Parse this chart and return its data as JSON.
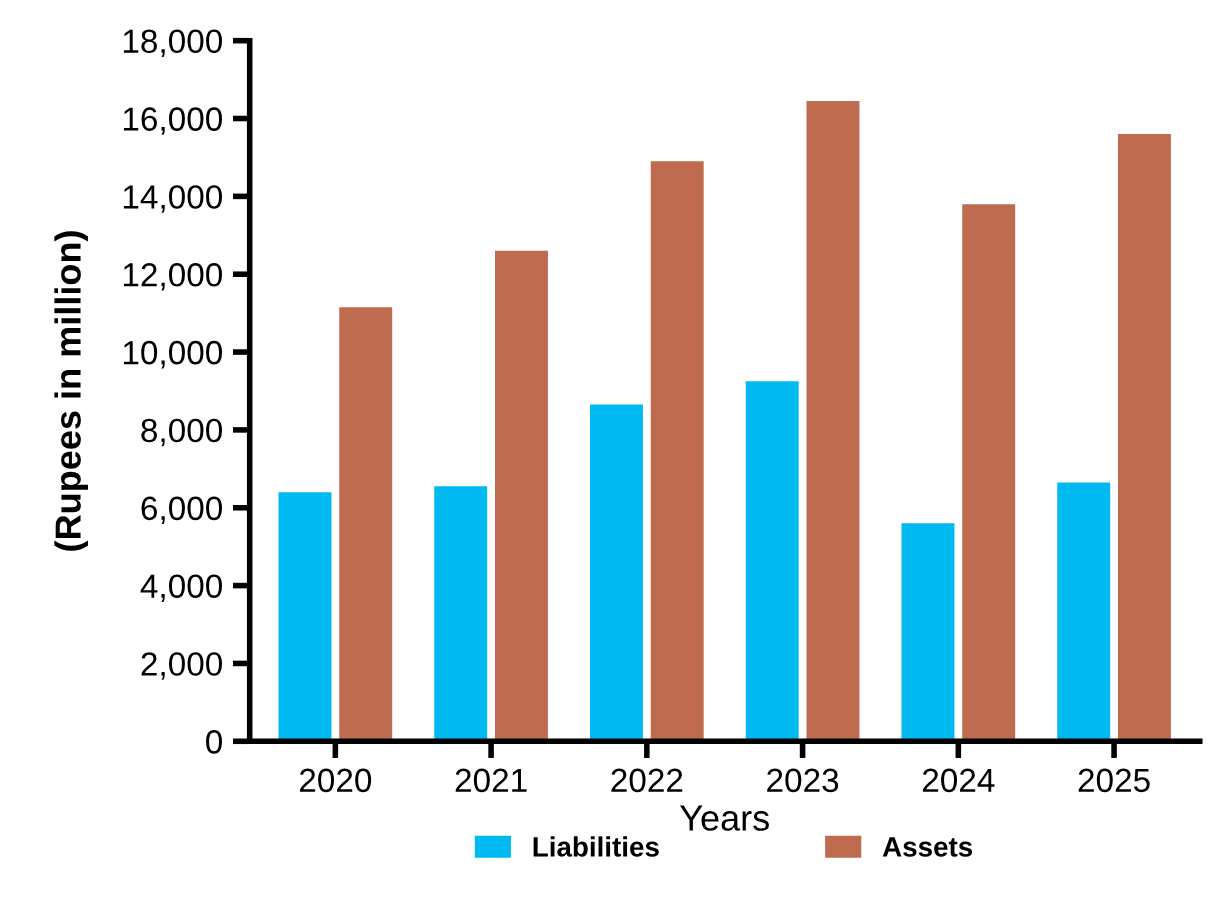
{
  "chart_data": {
    "type": "bar",
    "xlabel": "Years",
    "ylabel": "(Rupees in million)",
    "categories": [
      "2020",
      "2021",
      "2022",
      "2023",
      "2024",
      "2025"
    ],
    "series": [
      {
        "name": "Liabilities",
        "color": "#00b9f1",
        "values": [
          6400,
          6550,
          8650,
          9250,
          5600,
          6650
        ]
      },
      {
        "name": "Assets",
        "color": "#be6b4f",
        "values": [
          11150,
          12600,
          14900,
          16450,
          13800,
          15600
        ]
      }
    ],
    "ylim": [
      0,
      18000
    ],
    "yticks": [
      {
        "value": 0,
        "label": "0"
      },
      {
        "value": 2000,
        "label": "2,000"
      },
      {
        "value": 4000,
        "label": "4,000"
      },
      {
        "value": 6000,
        "label": "6,000"
      },
      {
        "value": 8000,
        "label": "8,000"
      },
      {
        "value": 10000,
        "label": "10,000"
      },
      {
        "value": 12000,
        "label": "12,000"
      },
      {
        "value": 14000,
        "label": "14,000"
      },
      {
        "value": 16000,
        "label": "16,000"
      },
      {
        "value": 18000,
        "label": "18,000"
      }
    ],
    "grid": false,
    "legend": "bottom"
  }
}
